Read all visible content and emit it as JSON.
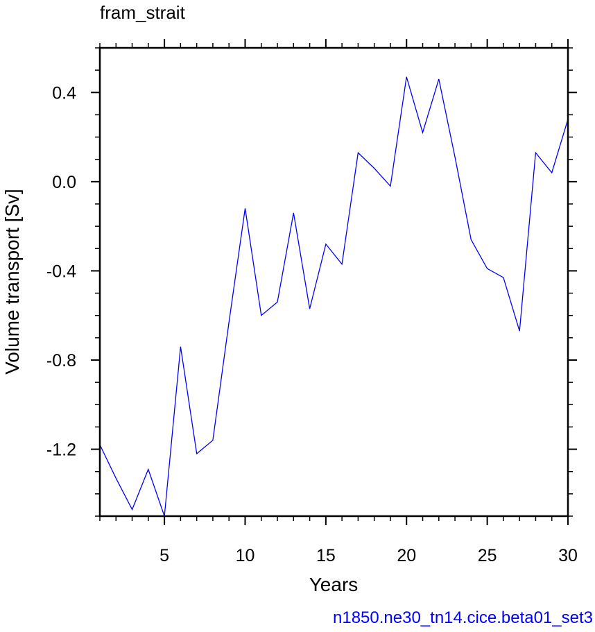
{
  "chart_data": {
    "type": "line",
    "title": "fram_strait",
    "xlabel": "Years",
    "ylabel": "Volume transport [Sv]",
    "caption": "n1850.ne30_tn14.cice.beta01_set3",
    "xlim": [
      1,
      30
    ],
    "ylim": [
      -1.5,
      0.6
    ],
    "xticks": [
      5,
      10,
      15,
      20,
      25,
      30
    ],
    "xtick_labels": [
      "5",
      "10",
      "15",
      "20",
      "25",
      "30"
    ],
    "yticks": [
      -1.2,
      -0.8,
      -0.4,
      0.0,
      0.4
    ],
    "ytick_labels": [
      "-1.2",
      "-0.8",
      "-0.4",
      "0.0",
      "0.4"
    ],
    "grid": false,
    "series": [
      {
        "color": "#0000ff",
        "x": [
          1,
          2,
          3,
          4,
          5,
          6,
          7,
          8,
          9,
          10,
          11,
          12,
          13,
          14,
          15,
          16,
          17,
          18,
          19,
          20,
          21,
          22,
          23,
          24,
          25,
          26,
          27,
          28,
          29,
          30
        ],
        "y": [
          -1.18,
          -1.33,
          -1.47,
          -1.29,
          -1.5,
          -0.74,
          -1.22,
          -1.16,
          -0.63,
          -0.12,
          -0.6,
          -0.54,
          -0.14,
          -0.57,
          -0.28,
          -0.37,
          0.13,
          0.06,
          -0.02,
          0.47,
          0.22,
          0.46,
          0.11,
          -0.26,
          -0.39,
          -0.43,
          -0.67,
          0.13,
          0.04,
          0.28
        ]
      }
    ]
  }
}
